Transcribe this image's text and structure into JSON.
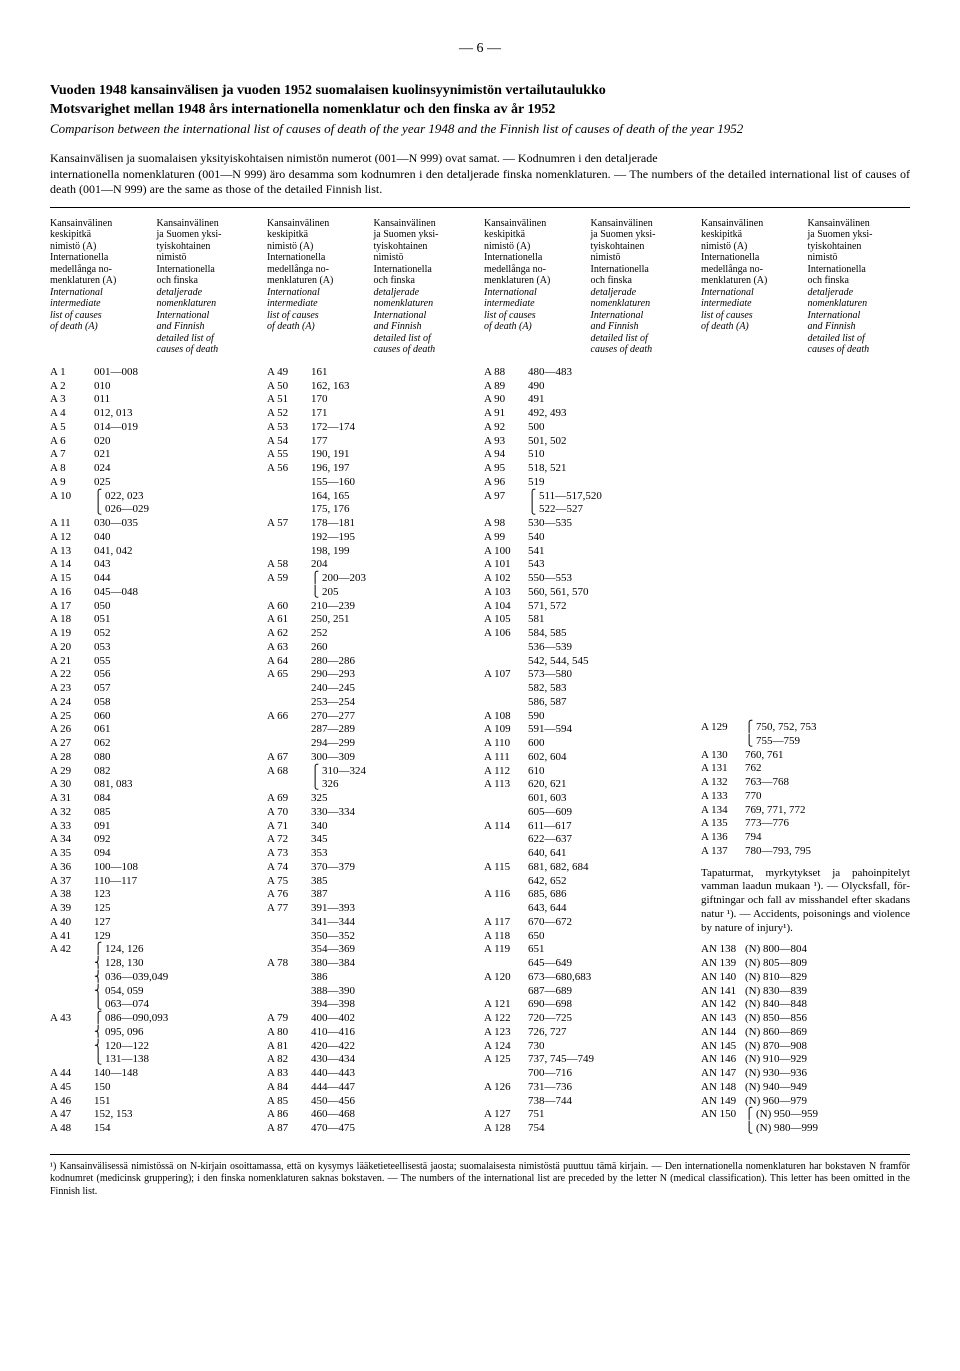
{
  "page_number": "— 6 —",
  "titles": {
    "fi": "Vuoden 1948 kansainvälisen ja vuoden 1952 suomalaisen kuolinsyynimistön vertailutaulukko",
    "sv": "Motsvarighet mellan 1948 års internationella nomenklatur och den finska av år 1952",
    "en": "Comparison between the international list of causes of death of the year 1948 and the Finnish list of causes of death of the year 1952"
  },
  "intro": {
    "fi": "Kansainvälisen ja suomalaisen yksityiskohtaisen nimistön numerot (001—N 999) ovat samat. — Kodnumren i den detaljerade",
    "sv_en": "internationella nomenklaturen (001—N 999) äro desamma som kodnumren i den detaljerade finska nomenklaturen. — The numbers of the detailed international list of causes of death (001—N 999) are the same as those of the detailed Finnish list."
  },
  "headers": {
    "left_a": "Kansainvälinen\nkeskipitkä\nnimistö (A)\nInternationella\nmedellånga no-\nmenklaturen (A)\nInternational\nintermediate\nlist of causes\nof death (A)",
    "left_b": "Kansainvälinen\nja Suomen yksi-\ntyiskohtainen\nnimistö\nInternationella\noch finska\ndetaljerade\nnomenklaturen\nInternational\nand Finnish\ndetailed list of\ncauses of death"
  },
  "pairs": [
    [
      [
        "A 1",
        "001—008"
      ],
      [
        "A 2",
        "010"
      ],
      [
        "A 3",
        "011"
      ],
      [
        "A 4",
        "012, 013"
      ],
      [
        "A 5",
        "014—019"
      ],
      [
        "A 6",
        "020"
      ],
      [
        "A 7",
        "021"
      ],
      [
        "A 8",
        "024"
      ],
      [
        "A 9",
        "025"
      ],
      [
        "A 10",
        "022, 023\n026—029"
      ],
      [
        "A 11",
        "030—035"
      ],
      [
        "A 12",
        "040"
      ],
      [
        "A 13",
        "041, 042"
      ],
      [
        "A 14",
        "043"
      ],
      [
        "A 15",
        "044"
      ],
      [
        "A 16",
        "045—048"
      ],
      [
        "A 17",
        "050"
      ],
      [
        "A 18",
        "051"
      ],
      [
        "A 19",
        "052"
      ],
      [
        "A 20",
        "053"
      ],
      [
        "A 21",
        "055"
      ],
      [
        "A 22",
        "056"
      ],
      [
        "A 23",
        "057"
      ],
      [
        "A 24",
        "058"
      ],
      [
        "A 25",
        "060"
      ],
      [
        "A 26",
        "061"
      ],
      [
        "A 27",
        "062"
      ],
      [
        "A 28",
        "080"
      ],
      [
        "A 29",
        "082"
      ],
      [
        "A 30",
        "081, 083"
      ],
      [
        "A 31",
        "084"
      ],
      [
        "A 32",
        "085"
      ],
      [
        "A 33",
        "091"
      ],
      [
        "A 34",
        "092"
      ],
      [
        "A 35",
        "094"
      ],
      [
        "A 36",
        "100—108"
      ],
      [
        "A 37",
        "110—117"
      ],
      [
        "A 38",
        "123"
      ],
      [
        "A 39",
        "125"
      ],
      [
        "A 40",
        "127"
      ],
      [
        "A 41",
        "129"
      ],
      [
        "A 42",
        "124, 126\n128, 130\n036—039,049\n054, 059\n063—074"
      ],
      [
        "A 43",
        "086—090,093\n095, 096\n120—122\n131—138"
      ],
      [
        "A 44",
        "140—148"
      ],
      [
        "A 45",
        "150"
      ],
      [
        "A 46",
        "151"
      ],
      [
        "A 47",
        "152, 153"
      ],
      [
        "A 48",
        "154"
      ]
    ],
    [
      [
        "A 49",
        "161"
      ],
      [
        "A 50",
        "162, 163"
      ],
      [
        "A 51",
        "170"
      ],
      [
        "A 52",
        "171"
      ],
      [
        "A 53",
        "172—174"
      ],
      [
        "A 54",
        "177"
      ],
      [
        "A 55",
        "190, 191"
      ],
      [
        "A 56",
        "196, 197"
      ],
      [
        "",
        "155—160"
      ],
      [
        "",
        "164, 165"
      ],
      [
        "",
        "175, 176"
      ],
      [
        "A 57",
        "178—181"
      ],
      [
        "",
        "192—195"
      ],
      [
        "",
        "198, 199"
      ],
      [
        "A 58",
        "204"
      ],
      [
        "A 59",
        "200—203\n205"
      ],
      [
        "A 60",
        "210—239"
      ],
      [
        "A 61",
        "250, 251"
      ],
      [
        "A 62",
        "252"
      ],
      [
        "A 63",
        "260"
      ],
      [
        "A 64",
        "280—286"
      ],
      [
        "A 65",
        "290—293"
      ],
      [
        "",
        "240—245"
      ],
      [
        "",
        "253—254"
      ],
      [
        "A 66",
        "270—277"
      ],
      [
        "",
        "287—289"
      ],
      [
        "",
        "294—299"
      ],
      [
        "A 67",
        "300—309"
      ],
      [
        "A 68",
        "310—324\n326"
      ],
      [
        "A 69",
        "325"
      ],
      [
        "A 70",
        "330—334"
      ],
      [
        "A 71",
        "340"
      ],
      [
        "A 72",
        "345"
      ],
      [
        "A 73",
        "353"
      ],
      [
        "A 74",
        "370—379"
      ],
      [
        "A 75",
        "385"
      ],
      [
        "A 76",
        "387"
      ],
      [
        "A 77",
        "391—393"
      ],
      [
        "",
        "341—344"
      ],
      [
        "",
        "350—352"
      ],
      [
        "",
        "354—369"
      ],
      [
        "A 78",
        "380—384"
      ],
      [
        "",
        "386"
      ],
      [
        "",
        "388—390"
      ],
      [
        "",
        "394—398"
      ],
      [
        "A 79",
        "400—402"
      ],
      [
        "A 80",
        "410—416"
      ],
      [
        "A 81",
        "420—422"
      ],
      [
        "A 82",
        "430—434"
      ],
      [
        "A 83",
        "440—443"
      ],
      [
        "A 84",
        "444—447"
      ],
      [
        "A 85",
        "450—456"
      ],
      [
        "A 86",
        "460—468"
      ],
      [
        "A 87",
        "470—475"
      ]
    ],
    [
      [
        "A 88",
        "480—483"
      ],
      [
        "A 89",
        "490"
      ],
      [
        "A 90",
        "491"
      ],
      [
        "A 91",
        "492, 493"
      ],
      [
        "A 92",
        "500"
      ],
      [
        "A 93",
        "501, 502"
      ],
      [
        "A 94",
        "510"
      ],
      [
        "A 95",
        "518, 521"
      ],
      [
        "A 96",
        "519"
      ],
      [
        "A 97",
        "511—517,520\n522—527"
      ],
      [
        "A 98",
        "530—535"
      ],
      [
        "A 99",
        "540"
      ],
      [
        "A 100",
        "541"
      ],
      [
        "A 101",
        "543"
      ],
      [
        "A 102",
        "550—553"
      ],
      [
        "A 103",
        "560, 561, 570"
      ],
      [
        "A 104",
        "571, 572"
      ],
      [
        "A 105",
        "581"
      ],
      [
        "A 106",
        "584, 585"
      ],
      [
        "",
        "536—539"
      ],
      [
        "",
        "542, 544, 545"
      ],
      [
        "A 107",
        "573—580"
      ],
      [
        "",
        "582, 583"
      ],
      [
        "",
        "586, 587"
      ],
      [
        "A 108",
        "590"
      ],
      [
        "A 109",
        "591—594"
      ],
      [
        "A 110",
        "600"
      ],
      [
        "A 111",
        "602, 604"
      ],
      [
        "A 112",
        "610"
      ],
      [
        "A 113",
        "620, 621"
      ],
      [
        "",
        "601, 603"
      ],
      [
        "",
        "605—609"
      ],
      [
        "A 114",
        "611—617"
      ],
      [
        "",
        "622—637"
      ],
      [
        "",
        "640, 641"
      ],
      [
        "A 115",
        "681, 682, 684"
      ],
      [
        "",
        "642, 652"
      ],
      [
        "A 116",
        "685, 686"
      ],
      [
        "",
        "643, 644"
      ],
      [
        "A 117",
        "670—672"
      ],
      [
        "A 118",
        "650"
      ],
      [
        "A 119",
        "651"
      ],
      [
        "",
        "645—649"
      ],
      [
        "A 120",
        "673—680,683"
      ],
      [
        "",
        "687—689"
      ],
      [
        "A 121",
        "690—698"
      ],
      [
        "A 122",
        "720—725"
      ],
      [
        "A 123",
        "726, 727"
      ],
      [
        "A 124",
        "730"
      ],
      [
        "A 125",
        "737, 745—749"
      ],
      [
        "",
        "700—716"
      ],
      [
        "A 126",
        "731—736"
      ],
      [
        "",
        "738—744"
      ],
      [
        "A 127",
        "751"
      ],
      [
        "A 128",
        "754"
      ]
    ],
    [
      [
        "A 129",
        "750, 752, 753\n755—759"
      ],
      [
        "A 130",
        "760, 761"
      ],
      [
        "A 131",
        "762"
      ],
      [
        "A 132",
        "763—768"
      ],
      [
        "A 133",
        "770"
      ],
      [
        "A 134",
        "769, 771, 772"
      ],
      [
        "A 135",
        "773—776"
      ],
      [
        "A 136",
        "794"
      ],
      [
        "A 137",
        "780—793, 795"
      ]
    ]
  ],
  "sidenote": "Tapaturmat, myrkytykset ja pahoinpitelyt vamman laadun mukaan ¹). — Olycksfall, för­giftningar och fall av miss­handel efter skadans natur ¹). — Accidents, poisonings and violence by nature of injury¹).",
  "an_rows": [
    [
      "AN 138",
      "(N) 800—804"
    ],
    [
      "AN 139",
      "(N) 805—809"
    ],
    [
      "AN 140",
      "(N) 810—829"
    ],
    [
      "AN 141",
      "(N) 830—839"
    ],
    [
      "AN 142",
      "(N) 840—848"
    ],
    [
      "AN 143",
      "(N) 850—856"
    ],
    [
      "AN 144",
      "(N) 860—869"
    ],
    [
      "AN 145",
      "(N) 870—908"
    ],
    [
      "AN 146",
      "(N) 910—929"
    ],
    [
      "AN 147",
      "(N) 930—936"
    ],
    [
      "AN 148",
      "(N) 940—949"
    ],
    [
      "AN 149",
      "(N) 960—979"
    ],
    [
      "AN 150",
      "(N) 950—959\n(N) 980—999"
    ]
  ],
  "footnote": "¹) Kansainvälisessä nimistössä on N-kirjain osoittamassa, että on kysymys lääketieteellisestä jaosta; suomalaisesta nimistöstä puuttuu tämä kirjain. — Den internationella nomenklaturen har bokstaven N framför kodnumret (medicinsk gruppering); i den finska nomenklaturen saknas bok­staven. — The numbers of the international list are preceded by the letter N (medical classification). This letter has been omitted in the Finnish list."
}
